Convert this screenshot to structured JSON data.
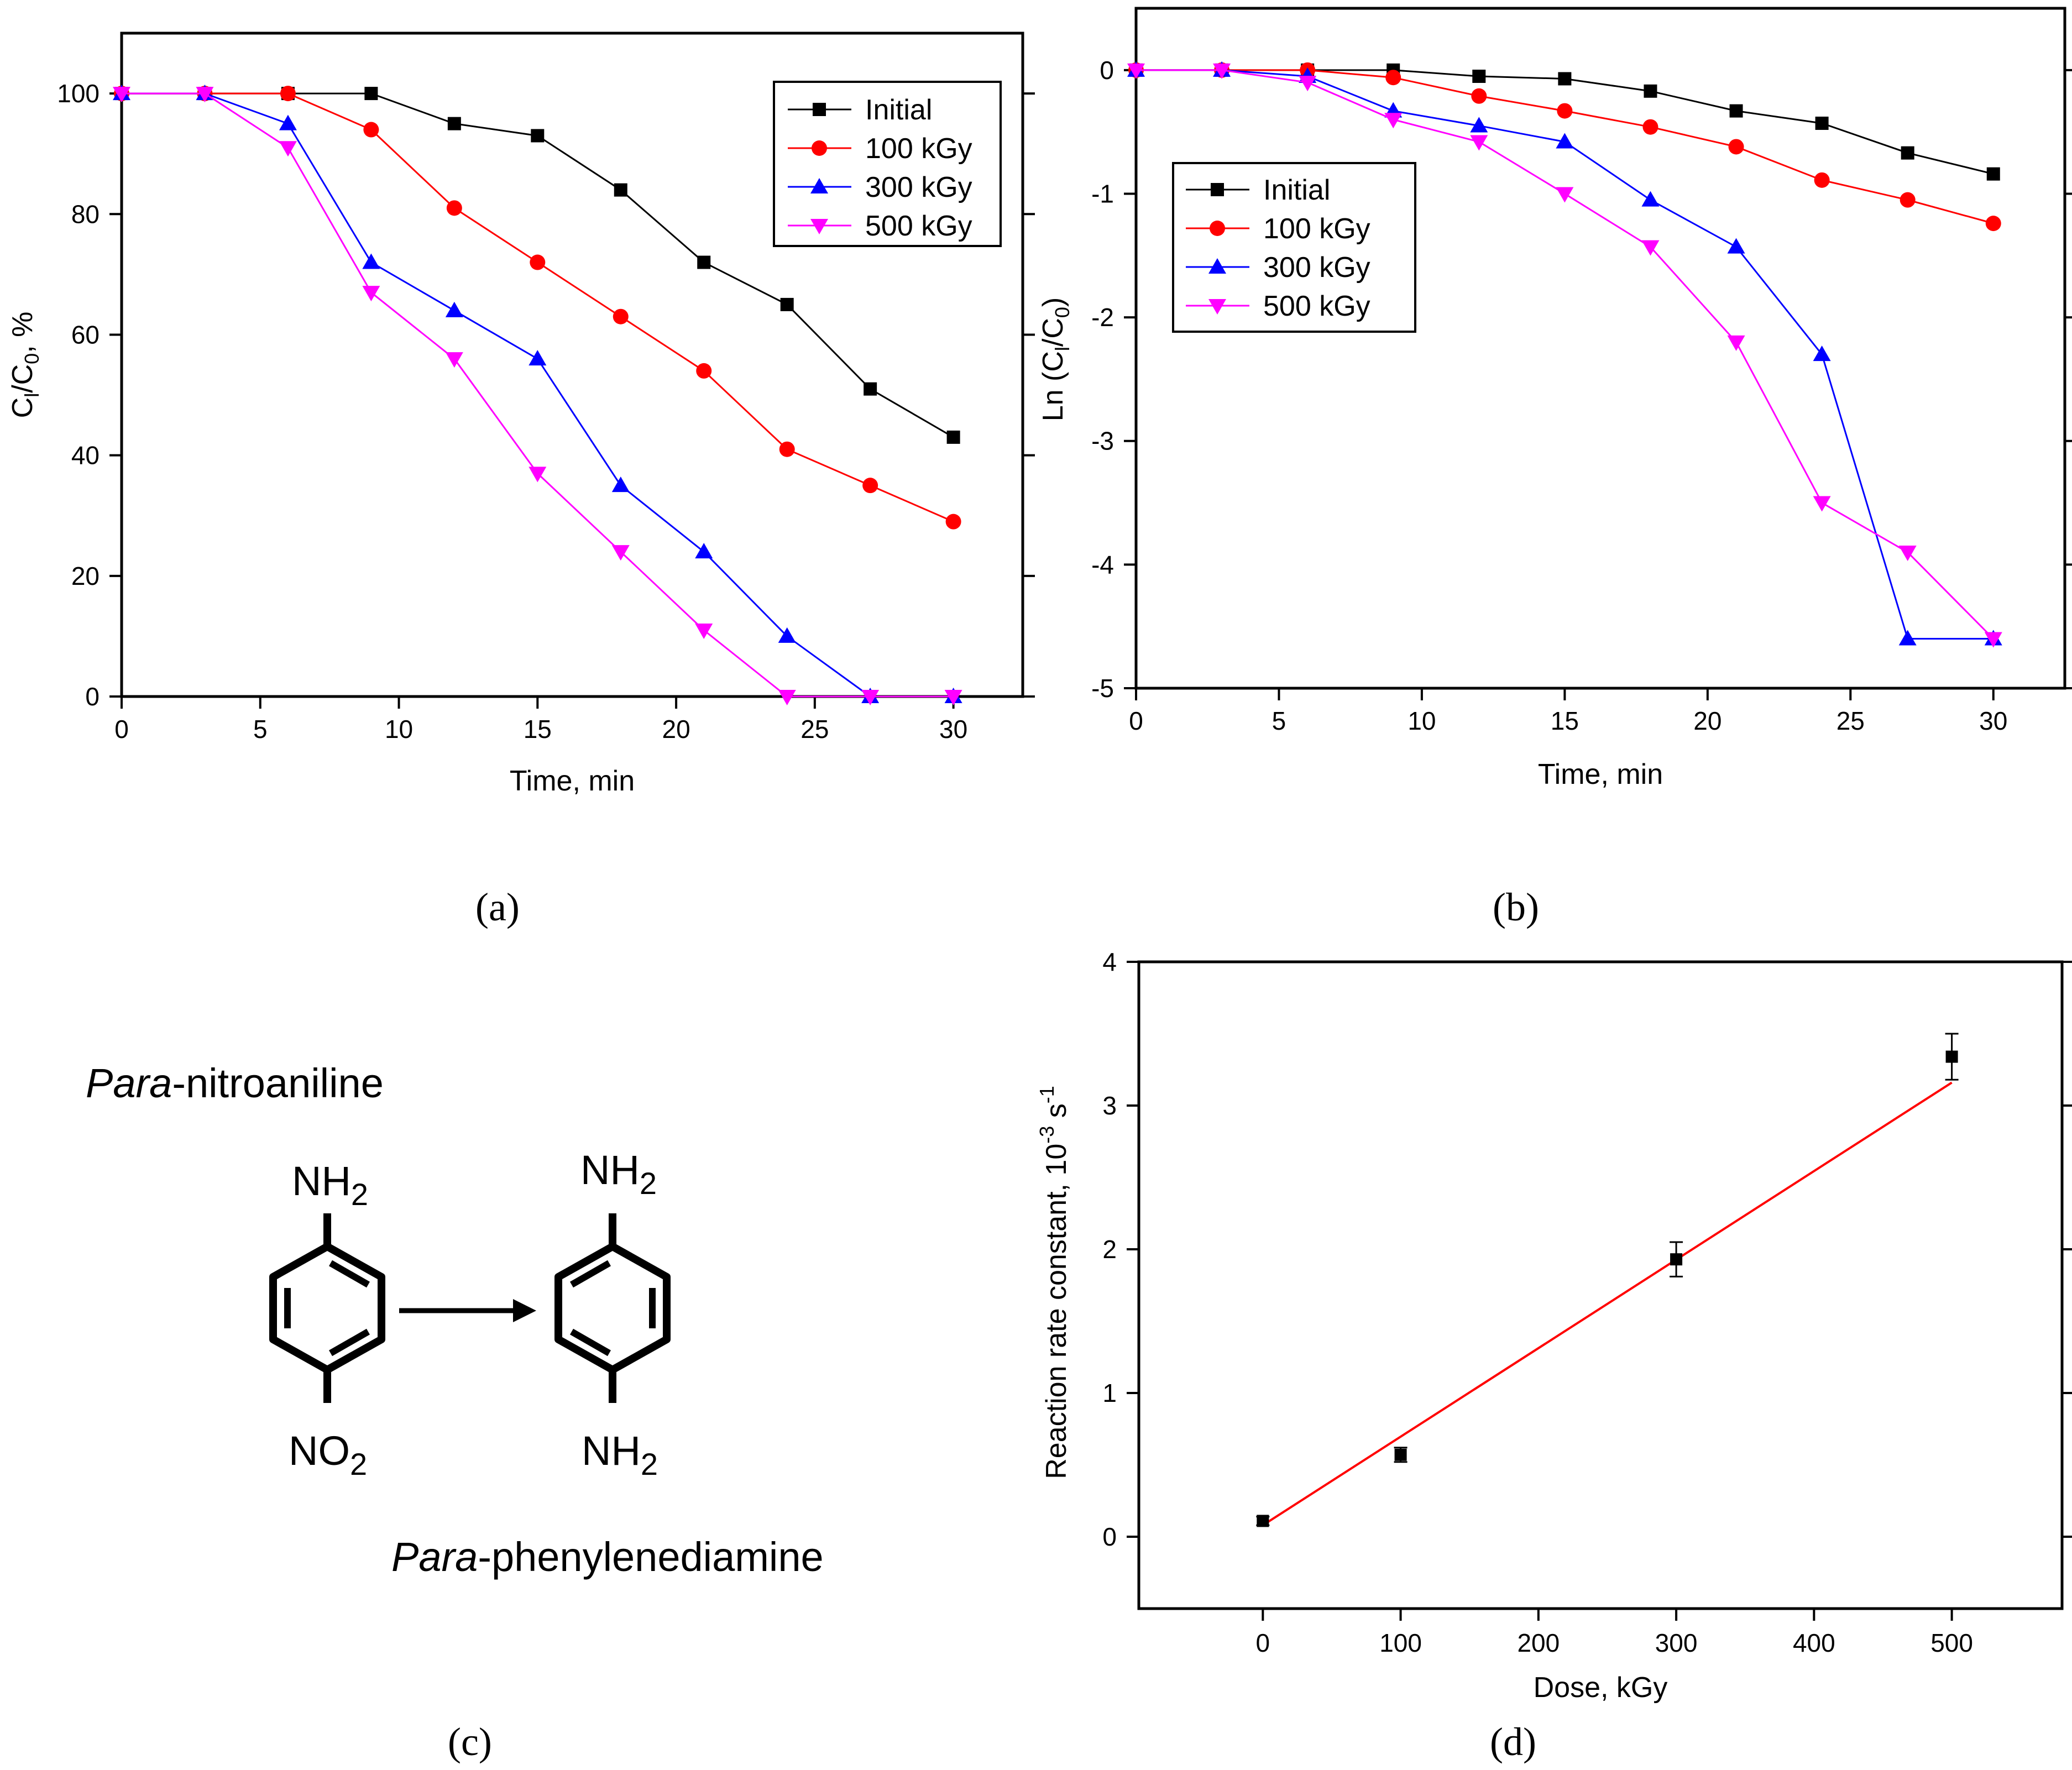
{
  "colors": {
    "initial": "#000000",
    "kgy100": "#ff0000",
    "kgy300": "#0000ff",
    "kgy500": "#ff00ff",
    "fit": "#ff0000"
  },
  "panels": {
    "a": "(a)",
    "b": "(b)",
    "c": "(c)",
    "d": "(d)"
  },
  "chart_data": [
    {
      "id": "a",
      "type": "line",
      "xlabel": "Time, min",
      "ylabel_main": "C",
      "ylabel_sub1": "l",
      "ylabel_mid": "/C",
      "ylabel_sub2": "0",
      "ylabel_end": ", %",
      "xlim": [
        0,
        32.5
      ],
      "ylim": [
        0,
        110
      ],
      "xticks": [
        0,
        5,
        10,
        15,
        20,
        25,
        30
      ],
      "yticks": [
        0,
        20,
        40,
        60,
        80,
        100
      ],
      "legend_position": "top-right",
      "x": [
        0,
        3,
        6,
        9,
        12,
        15,
        18,
        21,
        24,
        27,
        30
      ],
      "series": [
        {
          "name": "Initial",
          "color": "#000000",
          "marker": "square",
          "values": [
            100,
            100,
            100,
            100,
            95,
            93,
            84,
            72,
            65,
            51,
            43
          ]
        },
        {
          "name": "100 kGy",
          "color": "#ff0000",
          "marker": "circle",
          "values": [
            100,
            100,
            100,
            94,
            81,
            72,
            63,
            54,
            41,
            35,
            29
          ]
        },
        {
          "name": "300 kGy",
          "color": "#0000ff",
          "marker": "triangle-up",
          "values": [
            100,
            100,
            95,
            72,
            64,
            56,
            35,
            24,
            10,
            0,
            0
          ]
        },
        {
          "name": "500 kGy",
          "color": "#ff00ff",
          "marker": "triangle-down",
          "values": [
            100,
            100,
            91,
            67,
            56,
            37,
            24,
            11,
            0,
            0,
            0
          ]
        }
      ]
    },
    {
      "id": "b",
      "type": "line",
      "xlabel": "Time, min",
      "ylabel_main": "Ln (C",
      "ylabel_sub1": "l",
      "ylabel_mid": "/C",
      "ylabel_sub2": "0",
      "ylabel_end": ")",
      "xlim": [
        0,
        32.5
      ],
      "ylim": [
        -5,
        0.5
      ],
      "xticks": [
        0,
        5,
        10,
        15,
        20,
        25,
        30
      ],
      "yticks": [
        0,
        -1,
        -2,
        -3,
        -4,
        -5
      ],
      "legend_position": "top-left",
      "x": [
        0,
        3,
        6,
        9,
        12,
        15,
        18,
        21,
        24,
        27,
        30
      ],
      "series": [
        {
          "name": "Initial",
          "color": "#000000",
          "marker": "square",
          "values": [
            0,
            0,
            0,
            0,
            -0.05,
            -0.07,
            -0.17,
            -0.33,
            -0.43,
            -0.67,
            -0.84
          ]
        },
        {
          "name": "100 kGy",
          "color": "#ff0000",
          "marker": "circle",
          "values": [
            0,
            0,
            0,
            -0.06,
            -0.21,
            -0.33,
            -0.46,
            -0.62,
            -0.89,
            -1.05,
            -1.24
          ]
        },
        {
          "name": "300 kGy",
          "color": "#0000ff",
          "marker": "triangle-up",
          "values": [
            0,
            0,
            -0.05,
            -0.33,
            -0.45,
            -0.58,
            -1.05,
            -1.43,
            -2.3,
            -4.6,
            -4.6
          ]
        },
        {
          "name": "500 kGy",
          "color": "#ff00ff",
          "marker": "triangle-down",
          "values": [
            0,
            0,
            -0.1,
            -0.4,
            -0.58,
            -1.0,
            -1.43,
            -2.2,
            -3.5,
            -3.9,
            -4.6
          ]
        }
      ]
    },
    {
      "id": "d",
      "type": "scatter",
      "xlabel": "Dose, kGy",
      "ylabel_main": "Reaction rate constant, 10",
      "ylabel_sup1": "-3",
      "ylabel_mid": " s",
      "ylabel_sup2": "-1",
      "xlim": [
        -90,
        580
      ],
      "ylim": [
        -0.5,
        4
      ],
      "xticks": [
        0,
        100,
        200,
        300,
        400,
        500
      ],
      "yticks": [
        0,
        1,
        2,
        3,
        4
      ],
      "points": [
        {
          "x": 0,
          "y": 0.11,
          "err": 0.03
        },
        {
          "x": 100,
          "y": 0.57,
          "err": 0.05
        },
        {
          "x": 300,
          "y": 1.93,
          "err": 0.12
        },
        {
          "x": 500,
          "y": 3.34,
          "err": 0.16
        }
      ],
      "fit": {
        "x1": 0,
        "y1": 0.08,
        "x2": 500,
        "y2": 3.16,
        "color": "#ff0000"
      }
    }
  ],
  "scheme": {
    "reactant_name": "-nitroaniline",
    "reactant_prefix": "Para",
    "product_name": "-phenylenediamine",
    "product_prefix": "Para",
    "reactant_top": "NH",
    "reactant_top_sub": "2",
    "reactant_bottom": "NO",
    "reactant_bottom_sub": "2",
    "product_top": "NH",
    "product_top_sub": "2",
    "product_bottom": "NH",
    "product_bottom_sub": "2"
  }
}
